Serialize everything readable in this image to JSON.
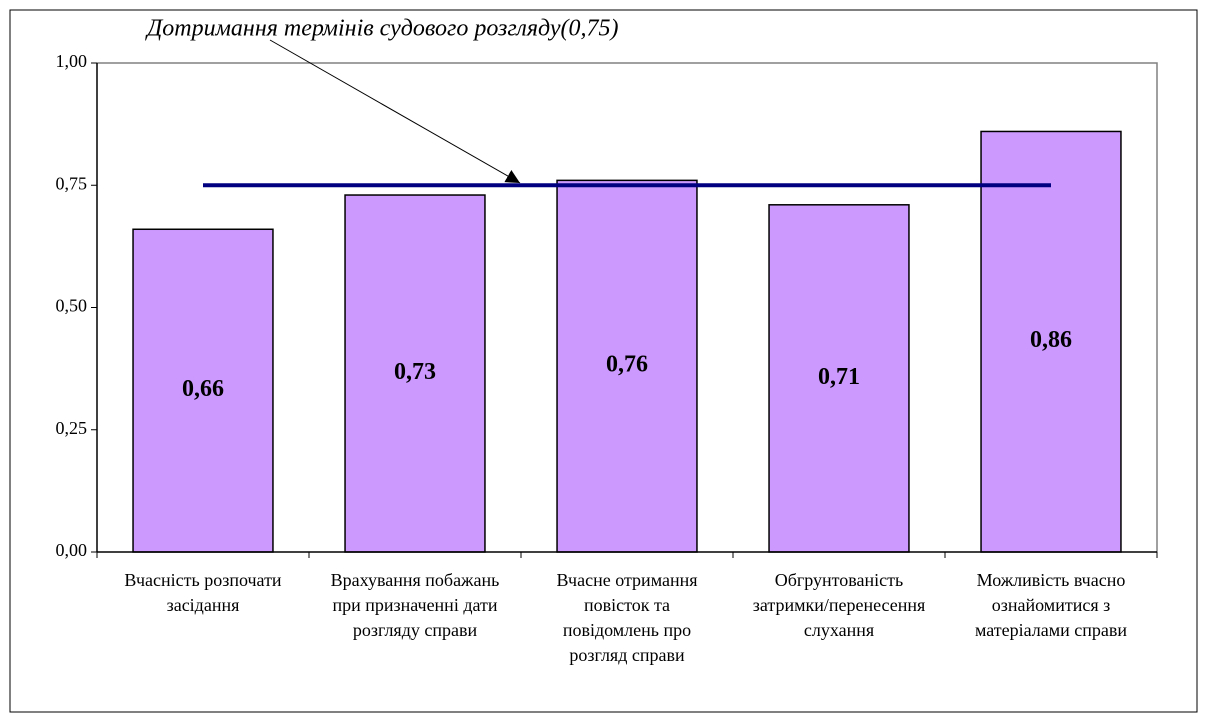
{
  "chart_data": {
    "type": "bar",
    "annotation": "Дотримання термінів судового розгляду(0,75)",
    "categories": [
      [
        "Вчасність розпочати",
        "засідання"
      ],
      [
        "Врахування побажань",
        "при призначенні дати",
        "розгляду справи"
      ],
      [
        "Вчасне отримання",
        "повісток та",
        "повідомлень про",
        "розгляд справи"
      ],
      [
        "Обгрунтованість",
        "затримки/перенесення",
        "слухання"
      ],
      [
        "Можливість вчасно",
        "ознайомитися з",
        "матеріалами справи"
      ]
    ],
    "values": [
      0.66,
      0.73,
      0.76,
      0.71,
      0.86
    ],
    "value_labels": [
      "0,66",
      "0,73",
      "0,76",
      "0,71",
      "0,86"
    ],
    "color": "#cc99ff",
    "reference_line": {
      "value": 0.75,
      "color": "#000080"
    },
    "ylim": [
      0,
      1
    ],
    "yticks": [
      {
        "value": 0,
        "label": "0,00"
      },
      {
        "value": 0.25,
        "label": "0,25"
      },
      {
        "value": 0.5,
        "label": "0,50"
      },
      {
        "value": 0.75,
        "label": "0,75"
      },
      {
        "value": 1,
        "label": "1,00"
      }
    ]
  }
}
